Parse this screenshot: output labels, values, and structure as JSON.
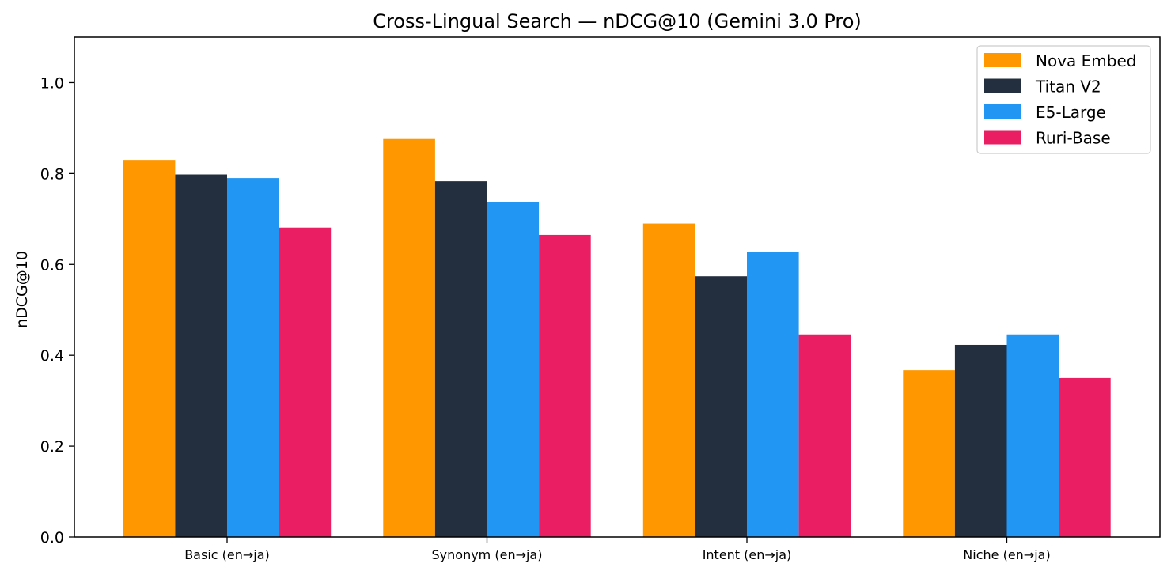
{
  "chart_data": {
    "type": "bar",
    "title": "Cross-Lingual Search — nDCG@10 (Gemini 3.0 Pro)",
    "xlabel": "",
    "ylabel": "nDCG@10",
    "ylim": [
      0,
      1.1
    ],
    "yticks": [
      0.0,
      0.2,
      0.4,
      0.6,
      0.8,
      1.0
    ],
    "ytick_labels": [
      "0.0",
      "0.2",
      "0.4",
      "0.6",
      "0.8",
      "1.0"
    ],
    "categories": [
      "Basic (en→ja)",
      "Synonym (en→ja)",
      "Intent (en→ja)",
      "Niche (en→ja)"
    ],
    "series": [
      {
        "name": "Nova Embed",
        "color": "#ff9800",
        "values": [
          0.83,
          0.876,
          0.69,
          0.367
        ]
      },
      {
        "name": "Titan V2",
        "color": "#232f3e",
        "values": [
          0.798,
          0.783,
          0.574,
          0.423
        ]
      },
      {
        "name": "E5-Large",
        "color": "#2196f3",
        "values": [
          0.79,
          0.737,
          0.627,
          0.446
        ]
      },
      {
        "name": "Ruri-Base",
        "color": "#e91e63",
        "values": [
          0.681,
          0.665,
          0.446,
          0.35
        ]
      }
    ],
    "grid": false,
    "legend_position": "top-right"
  }
}
